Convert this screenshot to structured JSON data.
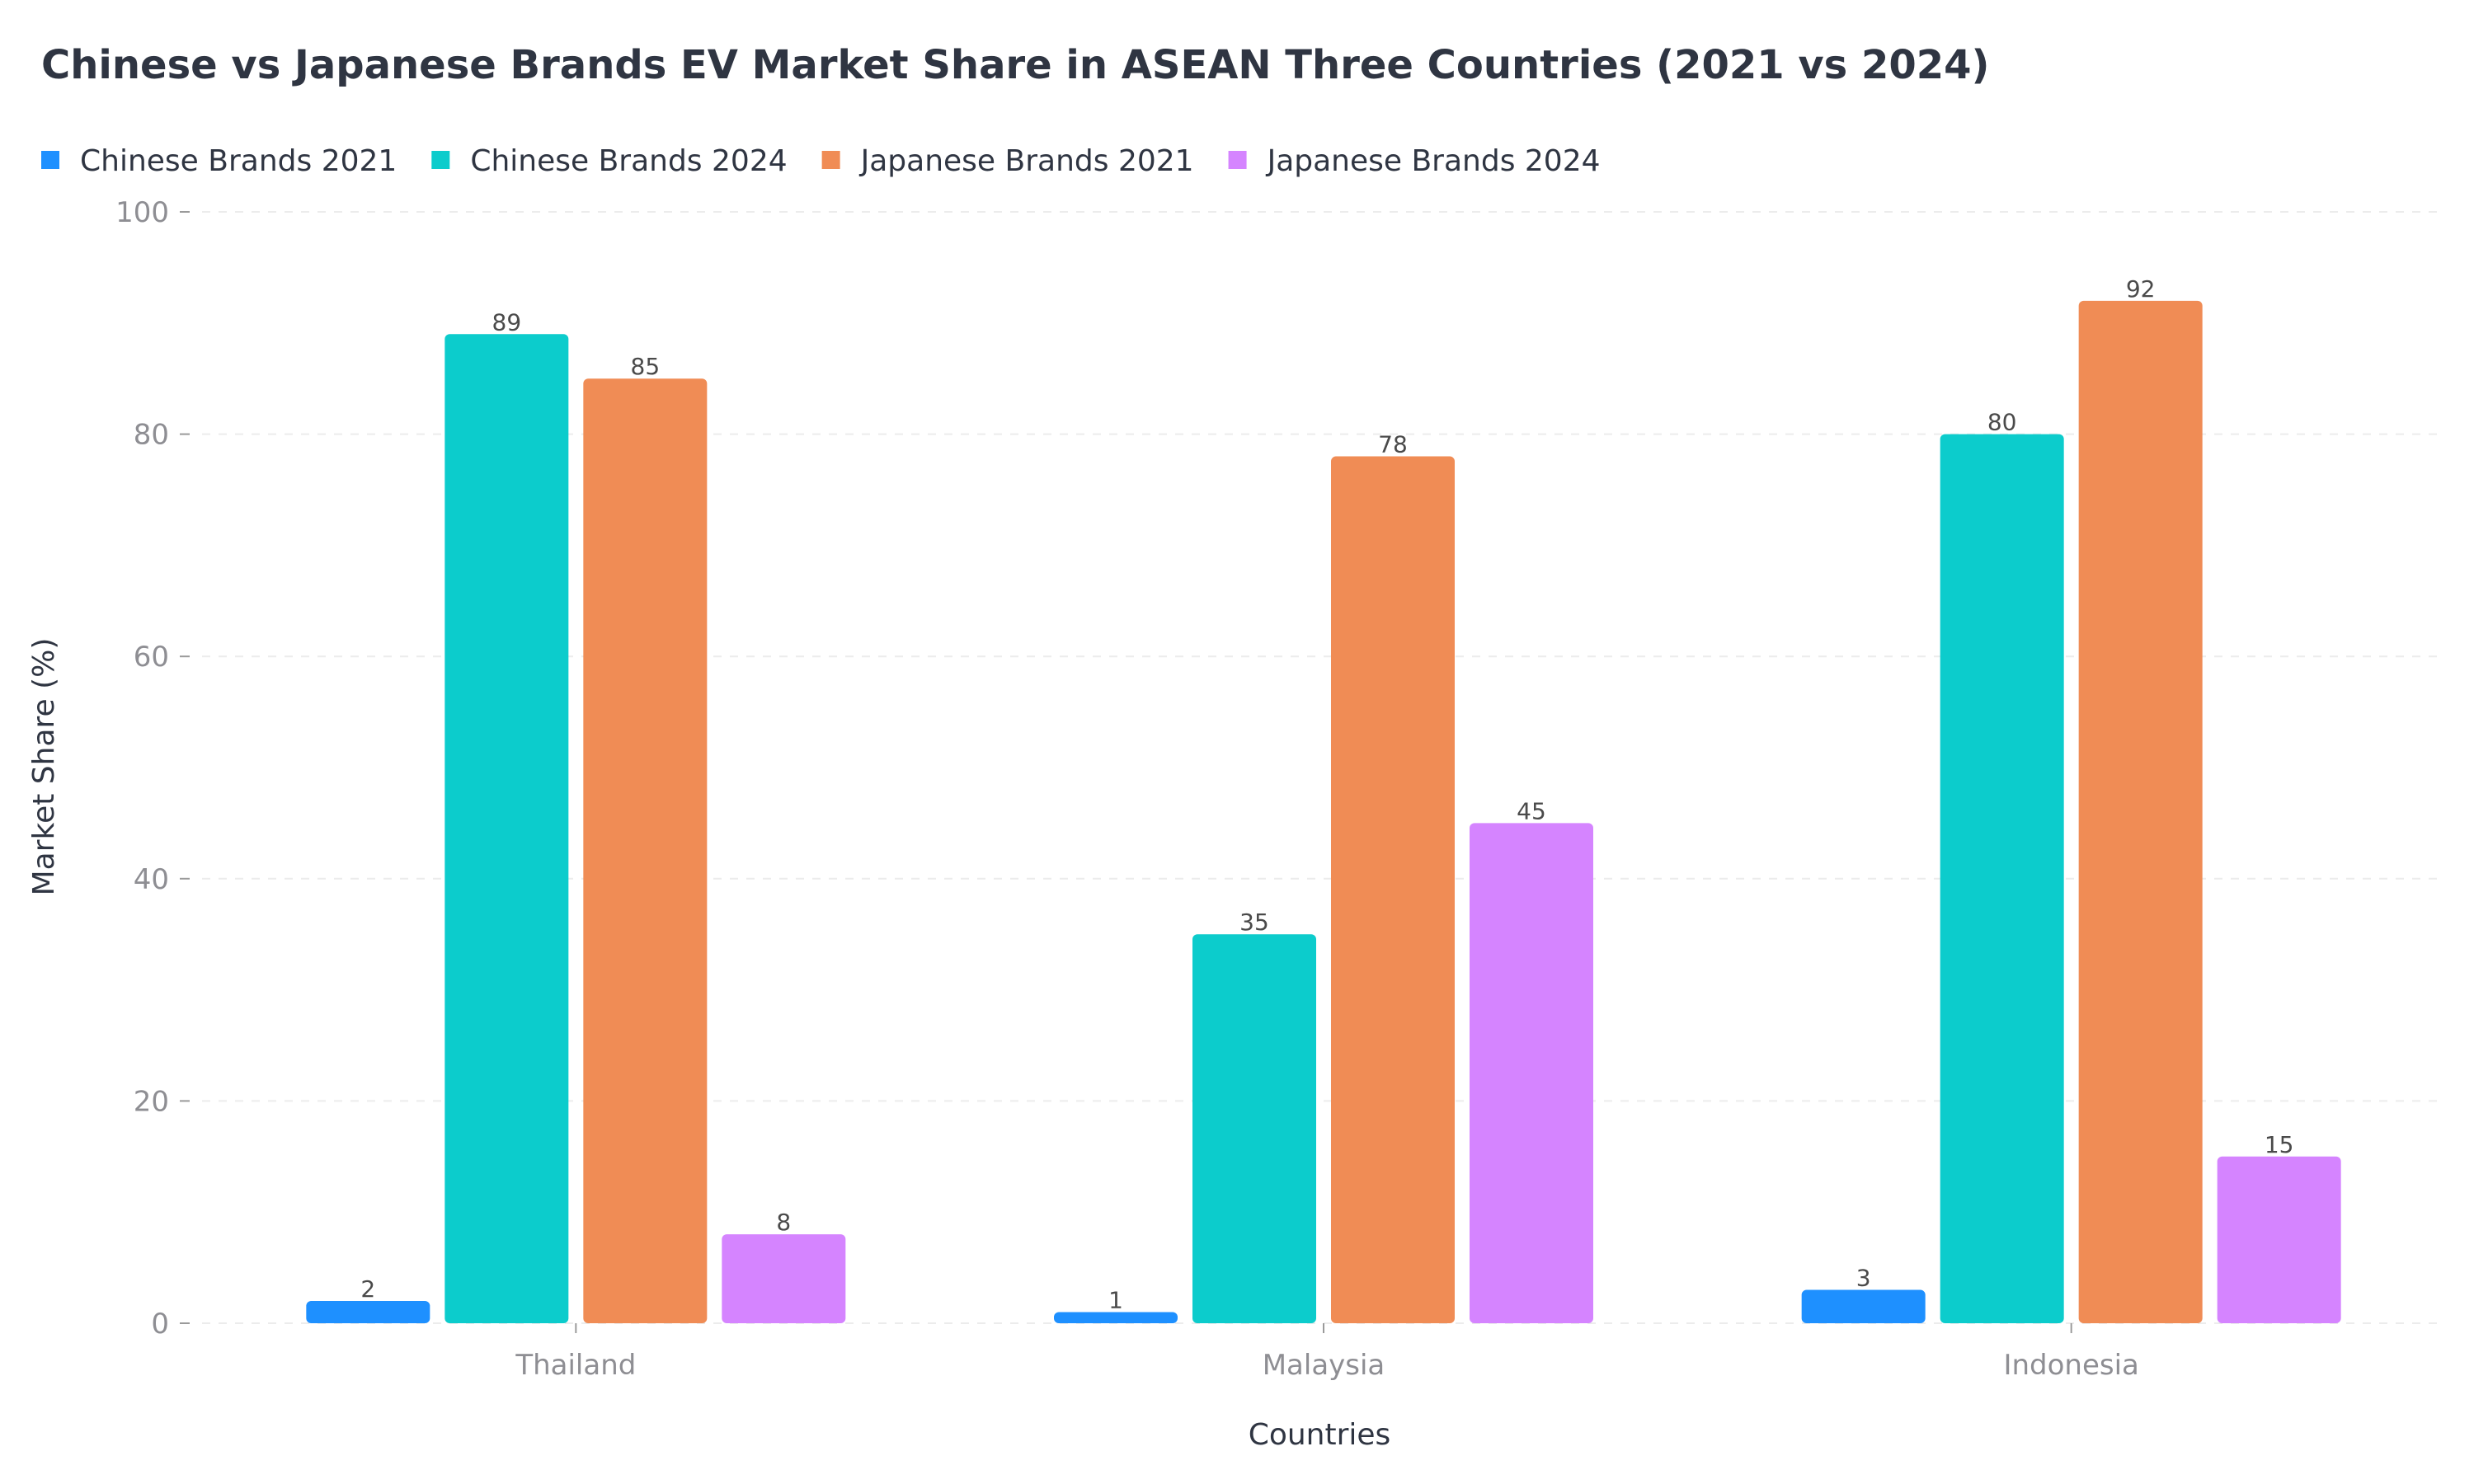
{
  "chart_data": {
    "type": "bar",
    "title": "Chinese vs Japanese Brands EV Market Share in ASEAN Three Countries (2021 vs 2024)",
    "xlabel": "Countries",
    "ylabel": "Market Share (%)",
    "ylim": [
      0,
      100
    ],
    "yticks": [
      "0",
      "20",
      "40",
      "60",
      "80",
      "100"
    ],
    "categories": [
      "Thailand",
      "Malaysia",
      "Indonesia"
    ],
    "series": [
      {
        "name": "Chinese Brands 2021",
        "color": "#1e90ff",
        "values": [
          2,
          1,
          3
        ]
      },
      {
        "name": "Chinese Brands 2024",
        "color": "#0ccccc",
        "values": [
          89,
          35,
          80
        ]
      },
      {
        "name": "Japanese Brands 2021",
        "color": "#f08c55",
        "values": [
          85,
          78,
          92
        ]
      },
      {
        "name": "Japanese Brands 2024",
        "color": "#d584ff",
        "values": [
          8,
          45,
          15
        ]
      }
    ],
    "legend_position": "top-left",
    "grid": true,
    "data_labels": true
  }
}
